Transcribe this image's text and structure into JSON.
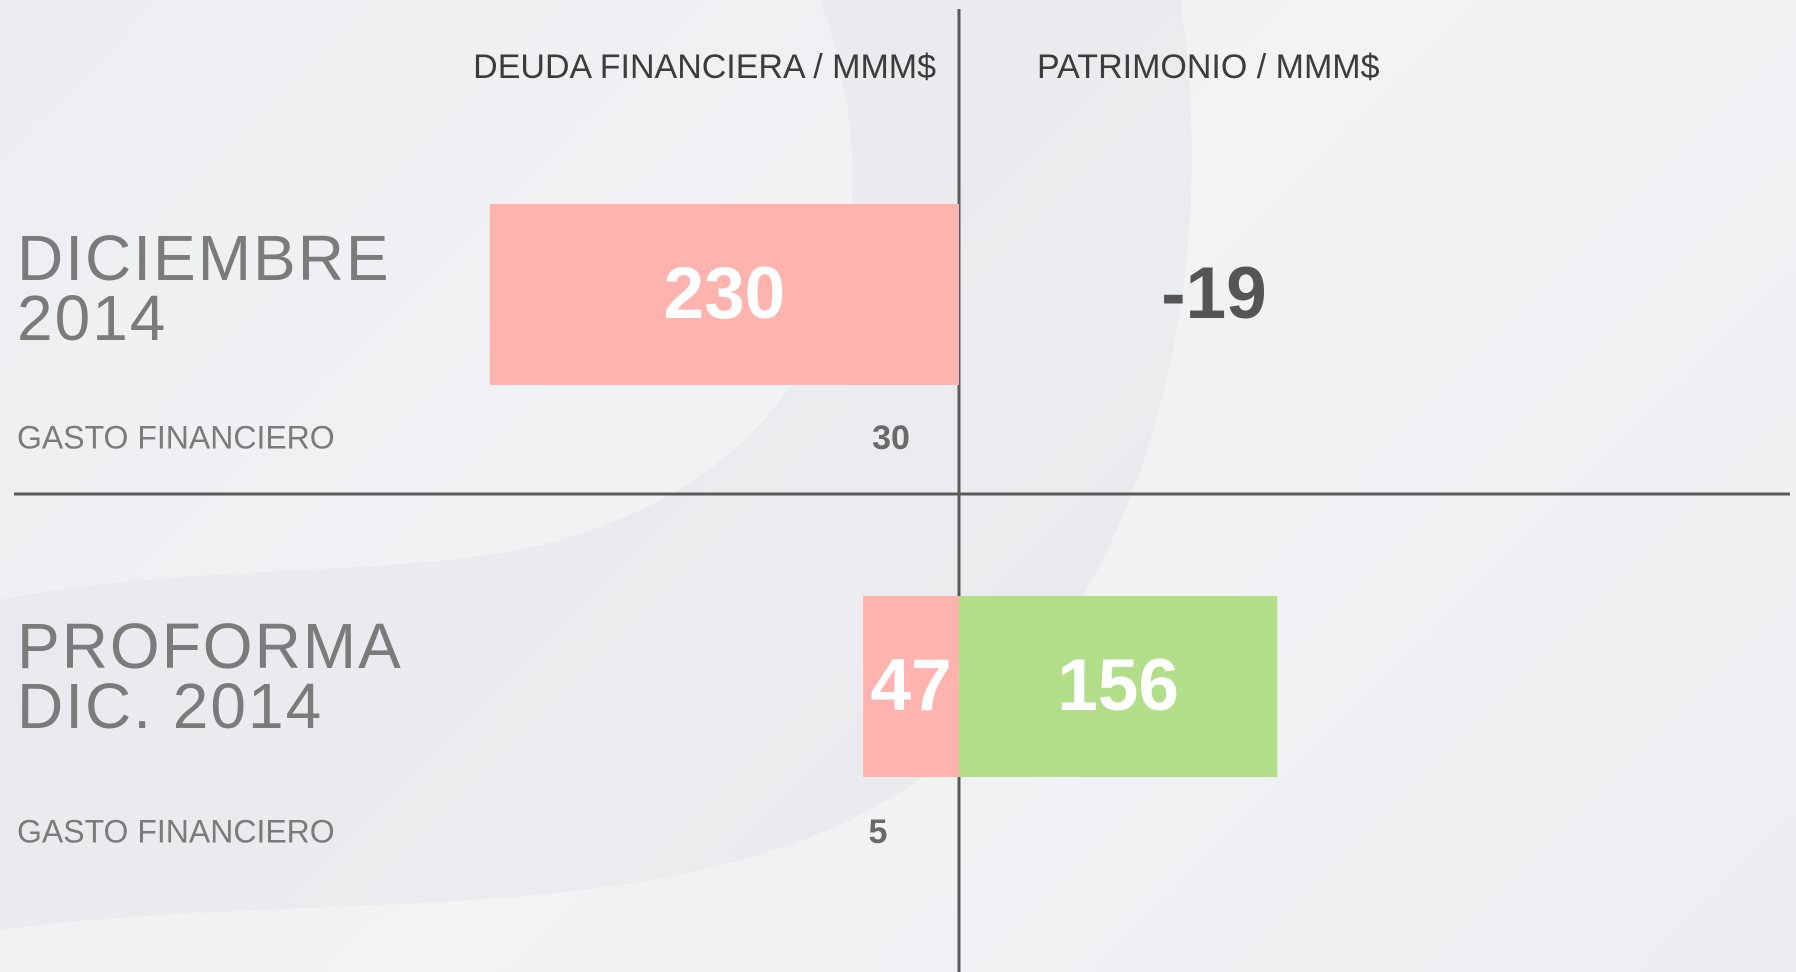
{
  "chart_data": {
    "type": "bar",
    "categories": [
      "DICIEMBRE 2014",
      "PROFORMA DIC. 2014"
    ],
    "series": [
      {
        "name": "DEUDA FINANCIERA / MMM$",
        "color": "#ffb3ae",
        "values": [
          230,
          47
        ]
      },
      {
        "name": "PATRIMONIO / MMM$",
        "color": "#b2de8a",
        "values": [
          -19,
          156
        ]
      }
    ],
    "secondary": {
      "name": "GASTO FINANCIERO",
      "values": [
        30,
        5
      ]
    }
  }
}
